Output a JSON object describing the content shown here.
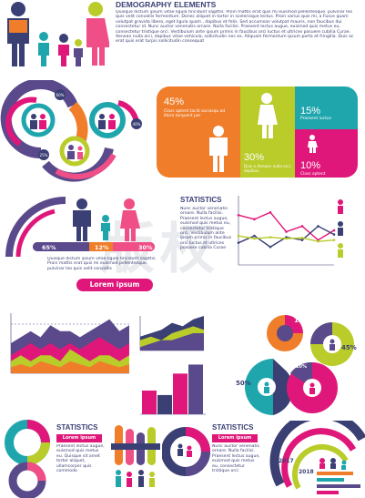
{
  "header": {
    "title": "DEMOGRAPHY ELEMENTS",
    "body": "Quisque dictum ipsum vitae ligula tincidunt sagittis. Proin mattis erat quis mi euismod pellentesque. pulvinar leo quis velit convallis fermentum. Donec aliquet in tortor in scelerisque lectus. Proin varius quis mi, a Fusce quam volutpat gravida libero, eget ligula quam , dapibus et felis. Sed accumsan volutpat mauris, non faucibus dui consectetur id. Nunc auctor venenatis ornare. Nulla facilisi. Praesent lectus augue, euismod quis metus eu, consectetur tristique orci. Vestibulum ante ipsum primis in faucibus orci luctus et ultrices posuere cubilia Curae. Aenean nulla orci, dapibus vitae vehicula, sollicitudin nec ex. Aliquam fermentum ipsum porta et fringilla. Duis ac erat quis erat turpis sollicitudin consequat"
  },
  "donut_labels": [
    "60%",
    "40%",
    "25%"
  ],
  "card": {
    "pct_45": "45%",
    "desc_45": "Class aptent taciti sociosqu ad litora torquent per",
    "pct_30": "30%",
    "desc_30": "Duis e Aenean nulla orci, dapibus",
    "pct_15": "15%",
    "desc_15": "Praesent luctus",
    "pct_10": "10%",
    "desc_10": "Class aptent"
  },
  "people_bar": {
    "labels": [
      "65%",
      "12%",
      "30%"
    ],
    "text": "Quisque dictum ipsum vitae ligula tincidunt sagittis. Proin mattis erat quis mi euismod pellentesque. pulvinar leo quis velit convallis",
    "button": "Lorem ipsum"
  },
  "stats1": {
    "title": "STATISTICS",
    "body": "Nunc auctor venenatis ornare. Nulla facilisi. Praesent lectus augue, euismod quis metus eu, consectetur tristique orci. Vestibulum ante ipsum primis in faucibus orci luctus et ultrices posuere cubilia Curae"
  },
  "pies": {
    "p15": "15%",
    "p45": "45%",
    "p50": "50%",
    "p10": "10%"
  },
  "stats2": {
    "title": "STATISTICS",
    "badge": "Lorem ipsum",
    "body": "Praesent lectus augue, euismod quis metus eu. Quisque sit amet tortor aliquet, ullamcorper quis commodo"
  },
  "stats3": {
    "title": "STATISTICS",
    "badge": "Lorem ipsum",
    "body": "Nunc auctor venenatis ornare. Nulla facilisi. Praesent lectus augue, euismod quis metus eu, consectetur tristique orci"
  },
  "years": [
    "2017",
    "2018"
  ],
  "colors": {
    "navy": "#3a3f74",
    "purple": "#5b4a8b",
    "magenta": "#e0177a",
    "lime": "#b9cc2a",
    "orange": "#f07d2a",
    "teal": "#1fa6ad",
    "pink": "#ef4e86"
  },
  "chart_data": [
    {
      "type": "line",
      "title": "",
      "series": [
        {
          "values": [
            7.2,
            6.6,
            7.6,
            4.8,
            5.6,
            3.6,
            5.0
          ]
        },
        {
          "values": [
            3.2,
            4.2,
            2.6,
            4.0,
            3.6,
            5.6,
            4.4
          ]
        },
        {
          "values": [
            4.2,
            3.8,
            4.0,
            3.8,
            3.9,
            3.4,
            3.6
          ]
        }
      ],
      "ylim": [
        0,
        10
      ]
    },
    {
      "type": "area",
      "title": "",
      "series": [
        {
          "values": [
            5,
            6,
            7,
            6,
            8,
            7,
            7,
            6,
            7,
            8,
            9,
            7,
            8
          ]
        },
        {
          "values": [
            3,
            4,
            5,
            4,
            5,
            4,
            5,
            4,
            5,
            6,
            5,
            4,
            5
          ]
        },
        {
          "values": [
            2,
            3,
            2,
            3,
            3,
            2,
            4,
            3,
            2,
            3,
            3,
            2,
            3
          ]
        },
        {
          "values": [
            1,
            1.5,
            1,
            2,
            1.5,
            1,
            2,
            1.5,
            1,
            2,
            1.5,
            1,
            1.5
          ]
        }
      ],
      "ylim": [
        0,
        10
      ]
    },
    {
      "type": "area",
      "title": "",
      "series": [
        {
          "values": [
            4,
            5,
            6,
            8,
            7,
            9,
            10
          ]
        },
        {
          "values": [
            3,
            4,
            3,
            5,
            6,
            7,
            6
          ]
        },
        {
          "values": [
            1,
            2,
            3,
            3,
            4,
            5,
            5
          ]
        }
      ],
      "ylim": [
        0,
        10
      ]
    },
    {
      "type": "bar",
      "title": "",
      "series": [
        {
          "values": [
            0.42,
            0.34,
            0.72,
            0.88
          ]
        }
      ],
      "ylim": [
        0,
        1
      ]
    }
  ]
}
